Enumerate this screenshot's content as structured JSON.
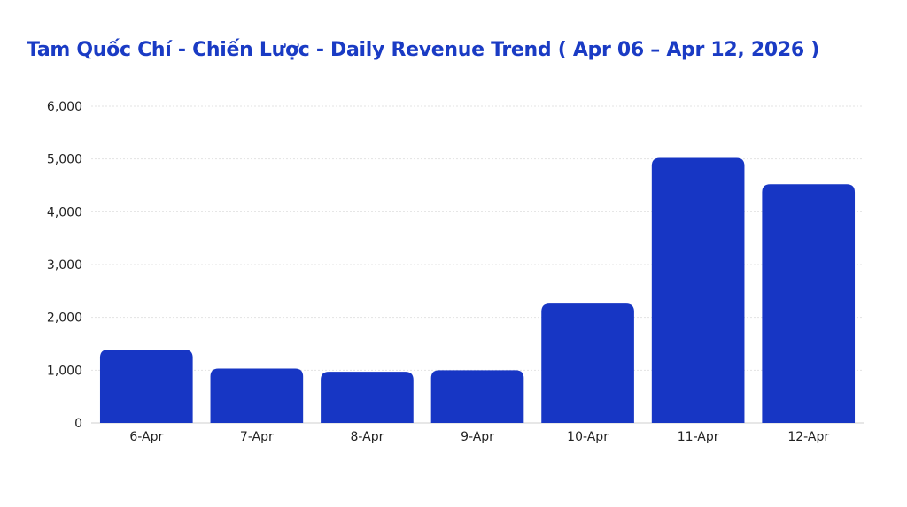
{
  "chart_data": {
    "type": "bar",
    "title": "Tam Quốc Chí - Chiến Lược - Daily Revenue Trend ( Apr 06 – Apr 12, 2026 )",
    "xlabel": "",
    "ylabel": "",
    "categories": [
      "6-Apr",
      "7-Apr",
      "8-Apr",
      "9-Apr",
      "10-Apr",
      "11-Apr",
      "12-Apr"
    ],
    "values": [
      1390,
      1030,
      970,
      1000,
      2260,
      5020,
      4520
    ],
    "ylim": [
      0,
      6000
    ],
    "yticks": [
      0,
      1000,
      2000,
      3000,
      4000,
      5000,
      6000
    ],
    "ytick_labels": [
      "0",
      "1,000",
      "2,000",
      "3,000",
      "4,000",
      "5,000",
      "6,000"
    ],
    "grid": true,
    "legend": "none",
    "bar_color": "#1736c4",
    "title_color": "#1a3bc4"
  }
}
